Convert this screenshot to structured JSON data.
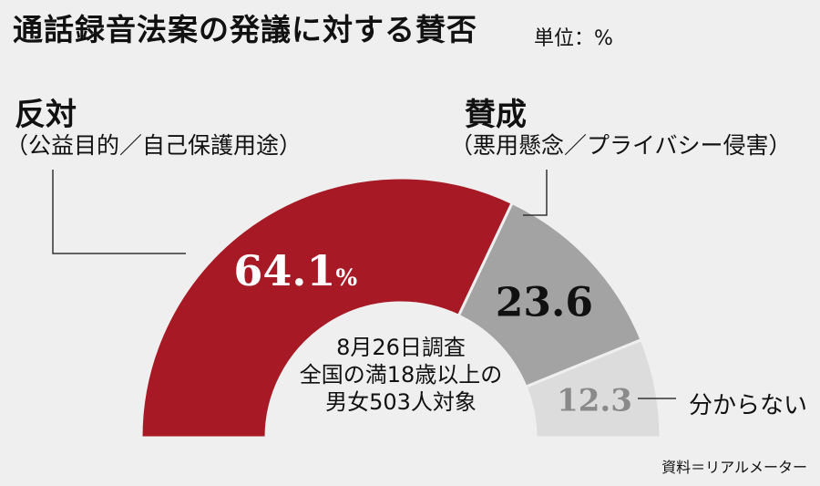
{
  "title": "通話録音法案の発議に対する賛否",
  "unit_label": "単位：%",
  "labels": {
    "oppose": "反対",
    "oppose_reason": "（公益目的／自己保護用途）",
    "support": "賛成",
    "support_reason": "（悪用懸念／プライバシー侵害）",
    "unknown": "分からない"
  },
  "center_note": [
    "8月26日調査",
    "全国の満18歳以上の",
    "男女503人対象"
  ],
  "source": "資料＝リアルメーター",
  "colors": {
    "oppose": "#a71924",
    "support": "#a3a3a3",
    "unknown": "#dcdcdc",
    "background": "#efefef"
  },
  "chart_data": {
    "type": "pie",
    "variant": "semicircle-donut",
    "slices": [
      {
        "label": "反対",
        "value": 64.1,
        "display": "64.1",
        "suffix": "%",
        "color": "#a71924",
        "text_color": "#ffffff"
      },
      {
        "label": "賛成",
        "value": 23.6,
        "display": "23.6",
        "suffix": "",
        "color": "#a3a3a3",
        "text_color": "#111111"
      },
      {
        "label": "分からない",
        "value": 12.3,
        "display": "12.3",
        "suffix": "",
        "color": "#dcdcdc",
        "text_color": "#8a8a8a"
      }
    ]
  }
}
